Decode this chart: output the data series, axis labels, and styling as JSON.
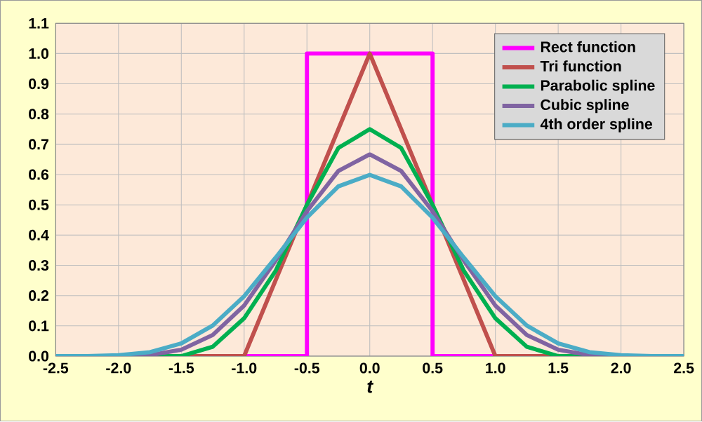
{
  "chart_data": {
    "type": "line",
    "xlabel": "t",
    "xlim": [
      -2.5,
      2.5
    ],
    "xticks": [
      {
        "value": -2.5,
        "label": "-2.5"
      },
      {
        "value": -2,
        "label": "-2.0"
      },
      {
        "value": -1.5,
        "label": "-1.5"
      },
      {
        "value": -1,
        "label": "-1.0"
      },
      {
        "value": -0.5,
        "label": "-0.5"
      },
      {
        "value": 0,
        "label": "0.0"
      },
      {
        "value": 0.5,
        "label": "0.5"
      },
      {
        "value": 1,
        "label": "1.0"
      },
      {
        "value": 1.5,
        "label": "1.5"
      },
      {
        "value": 2,
        "label": "2.0"
      },
      {
        "value": 2.5,
        "label": "2.5"
      }
    ],
    "ylim": [
      0,
      1.1
    ],
    "yticks": [
      {
        "value": 0,
        "label": "0.0"
      },
      {
        "value": 0.1,
        "label": "0.1"
      },
      {
        "value": 0.2,
        "label": "0.2"
      },
      {
        "value": 0.3,
        "label": "0.3"
      },
      {
        "value": 0.4,
        "label": "0.4"
      },
      {
        "value": 0.5,
        "label": "0.5"
      },
      {
        "value": 0.6,
        "label": "0.6"
      },
      {
        "value": 0.7,
        "label": "0.7"
      },
      {
        "value": 0.8,
        "label": "0.8"
      },
      {
        "value": 0.9,
        "label": "0.9"
      },
      {
        "value": 1,
        "label": "1.0"
      },
      {
        "value": 1.1,
        "label": "1.1"
      }
    ],
    "grid": true,
    "legend": "top right",
    "marker": "none",
    "line_style": "solid",
    "series": [
      {
        "name": "Rect function",
        "color": "#ff00ff",
        "x": [
          -2.5,
          -0.5,
          -0.5,
          0.5,
          0.5,
          2.5
        ],
        "values": [
          0,
          0,
          1,
          1,
          0,
          0
        ]
      },
      {
        "name": "Tri function",
        "color": "#c0504d",
        "x": [
          -2.5,
          -1,
          0,
          1,
          2.5
        ],
        "values": [
          0,
          0,
          1,
          0,
          0
        ]
      },
      {
        "name": "Parabolic spline",
        "color": "#00b050",
        "x": [
          -2.5,
          -1.5,
          -1.25,
          -1,
          -0.75,
          -0.5,
          -0.25,
          0,
          0.25,
          0.5,
          0.75,
          1,
          1.25,
          1.5,
          2.5
        ],
        "values": [
          0,
          0,
          0.031,
          0.125,
          0.281,
          0.5,
          0.688,
          0.75,
          0.688,
          0.5,
          0.281,
          0.125,
          0.031,
          0,
          0
        ]
      },
      {
        "name": "Cubic spline",
        "color": "#8064a2",
        "x": [
          -2.5,
          -2,
          -1.75,
          -1.5,
          -1.25,
          -1,
          -0.75,
          -0.5,
          -0.25,
          0,
          0.25,
          0.5,
          0.75,
          1,
          1.25,
          1.5,
          1.75,
          2,
          2.5
        ],
        "values": [
          0,
          0,
          0.003,
          0.021,
          0.07,
          0.167,
          0.315,
          0.479,
          0.612,
          0.667,
          0.612,
          0.479,
          0.315,
          0.167,
          0.07,
          0.021,
          0.003,
          0,
          0
        ]
      },
      {
        "name": "4th order spline",
        "color": "#4bacc6",
        "x": [
          -2.5,
          -2.25,
          -2,
          -1.75,
          -1.5,
          -1.25,
          -1,
          -0.75,
          -0.5,
          -0.25,
          0,
          0.25,
          0.5,
          0.75,
          1,
          1.25,
          1.5,
          1.75,
          2,
          2.25,
          2.5
        ],
        "values": [
          0,
          0,
          0.003,
          0.013,
          0.042,
          0.101,
          0.198,
          0.325,
          0.458,
          0.561,
          0.599,
          0.561,
          0.458,
          0.325,
          0.198,
          0.101,
          0.042,
          0.013,
          0.003,
          0,
          0
        ]
      }
    ]
  }
}
